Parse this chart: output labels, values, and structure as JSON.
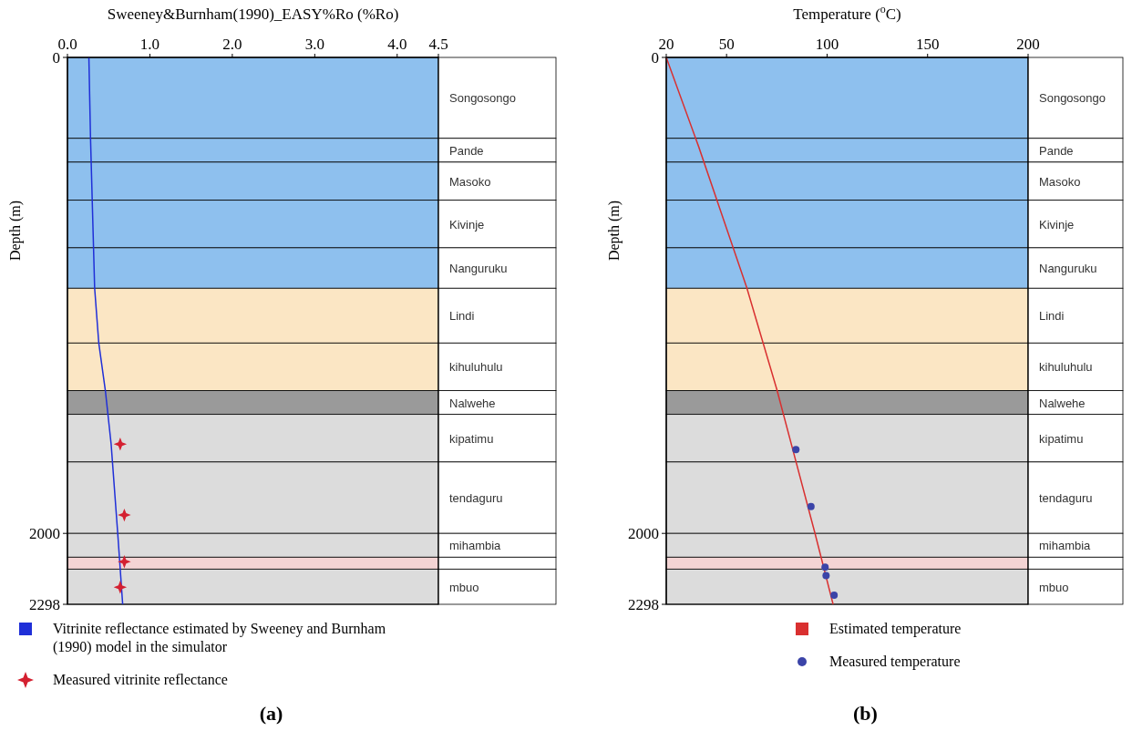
{
  "chart_data": [
    {
      "type": "line",
      "xlabel": "Sweeney&Burnham(1990)_EASY%Ro (%Ro)",
      "ylabel": "Depth (m)",
      "xlim": [
        0,
        4.5
      ],
      "xticks": [
        {
          "value": 0,
          "label": "0.0"
        },
        {
          "value": 1,
          "label": "1.0"
        },
        {
          "value": 2,
          "label": "2.0"
        },
        {
          "value": 3,
          "label": "3.0"
        },
        {
          "value": 4,
          "label": "4.0"
        },
        4.5
      ],
      "ylim": [
        2298,
        0
      ],
      "yticks": [
        0,
        2000,
        2298
      ],
      "legend": "bottom",
      "series": [
        {
          "name": "Vitrinite reflectance estimated by Sweeney and Burnham (1990) model in the simulator",
          "color": "#1f2fd8",
          "x": [
            0.26,
            0.28,
            0.33,
            0.38,
            0.46,
            0.53,
            0.61,
            0.67
          ],
          "values": [
            0,
            340,
            970,
            1200,
            1400,
            1625,
            2000,
            2298
          ]
        },
        {
          "name": "Measured vitrinite reflectance",
          "type": "scatter",
          "marker": "star",
          "color": "#d42030",
          "x": [
            0.64,
            0.69,
            0.69,
            0.64
          ],
          "values": [
            1625,
            1923,
            2119,
            2226
          ]
        }
      ],
      "bands": [
        {
          "axis": "y",
          "from": 0,
          "to": 340,
          "label": "Songosongo",
          "color": "#8ec0ee"
        },
        {
          "axis": "y",
          "from": 340,
          "to": 440,
          "label": "Pande",
          "color": "#8ec0ee"
        },
        {
          "axis": "y",
          "from": 440,
          "to": 600,
          "label": "Masoko",
          "color": "#8ec0ee"
        },
        {
          "axis": "y",
          "from": 600,
          "to": 800,
          "label": "Kivinje",
          "color": "#8ec0ee"
        },
        {
          "axis": "y",
          "from": 800,
          "to": 970,
          "label": "Nanguruku",
          "color": "#8ec0ee"
        },
        {
          "axis": "y",
          "from": 970,
          "to": 1200,
          "label": "Lindi",
          "color": "#fbe6c4"
        },
        {
          "axis": "y",
          "from": 1200,
          "to": 1400,
          "label": "kihuluhulu",
          "color": "#fbe6c4"
        },
        {
          "axis": "y",
          "from": 1400,
          "to": 1500,
          "label": "Nalwehe",
          "color": "#9a9a9a"
        },
        {
          "axis": "y",
          "from": 1500,
          "to": 1700,
          "label": "kipatimu",
          "color": "#dcdcdc"
        },
        {
          "axis": "y",
          "from": 1700,
          "to": 2000,
          "label": "tendaguru",
          "color": "#dcdcdc"
        },
        {
          "axis": "y",
          "from": 2000,
          "to": 2100,
          "label": "mihambia",
          "color": "#dcdcdc"
        },
        {
          "axis": "y",
          "from": 2100,
          "to": 2150,
          "color": "#f4d4d4"
        },
        {
          "axis": "y",
          "from": 2150,
          "to": 2298,
          "label": "mbuo",
          "color": "#dcdcdc"
        }
      ],
      "annotations": [
        "(a)"
      ]
    },
    {
      "type": "line",
      "xlabel": "Temperature ($^{o}$C)",
      "ylabel": "Depth (m)",
      "xlim": [
        20,
        200
      ],
      "xticks": [
        20,
        50,
        100,
        150,
        200
      ],
      "ylim": [
        2298,
        0
      ],
      "yticks": [
        0,
        2000,
        2298
      ],
      "legend": "bottom",
      "series": [
        {
          "name": "Estimated temperature",
          "color": "#d93030",
          "x": [
            20,
            36,
            60,
            75,
            94,
            103
          ],
          "values": [
            0,
            372,
            966,
            1395,
            2000,
            2298
          ]
        },
        {
          "name": "Measured temperature",
          "type": "scatter",
          "marker": "circle",
          "color": "#3b44a8",
          "x": [
            84.5,
            92,
            99,
            99.5,
            103.5
          ],
          "values": [
            1648,
            1887,
            2142,
            2177,
            2260
          ]
        }
      ],
      "bands": [
        {
          "axis": "y",
          "from": 0,
          "to": 340,
          "label": "Songosongo",
          "color": "#8ec0ee"
        },
        {
          "axis": "y",
          "from": 340,
          "to": 440,
          "label": "Pande",
          "color": "#8ec0ee"
        },
        {
          "axis": "y",
          "from": 440,
          "to": 600,
          "label": "Masoko",
          "color": "#8ec0ee"
        },
        {
          "axis": "y",
          "from": 600,
          "to": 800,
          "label": "Kivinje",
          "color": "#8ec0ee"
        },
        {
          "axis": "y",
          "from": 800,
          "to": 970,
          "label": "Nanguruku",
          "color": "#8ec0ee"
        },
        {
          "axis": "y",
          "from": 970,
          "to": 1200,
          "label": "Lindi",
          "color": "#fbe6c4"
        },
        {
          "axis": "y",
          "from": 1200,
          "to": 1400,
          "label": "kihuluhulu",
          "color": "#fbe6c4"
        },
        {
          "axis": "y",
          "from": 1400,
          "to": 1500,
          "label": "Nalwehe",
          "color": "#9a9a9a"
        },
        {
          "axis": "y",
          "from": 1500,
          "to": 1700,
          "label": "kipatimu",
          "color": "#dcdcdc"
        },
        {
          "axis": "y",
          "from": 1700,
          "to": 2000,
          "label": "tendaguru",
          "color": "#dcdcdc"
        },
        {
          "axis": "y",
          "from": 2000,
          "to": 2100,
          "label": "mihambia",
          "color": "#dcdcdc"
        },
        {
          "axis": "y",
          "from": 2100,
          "to": 2150,
          "color": "#f4d4d4"
        },
        {
          "axis": "y",
          "from": 2150,
          "to": 2298,
          "label": "mbuo",
          "color": "#dcdcdc"
        }
      ],
      "annotations": [
        "(b)"
      ]
    }
  ]
}
